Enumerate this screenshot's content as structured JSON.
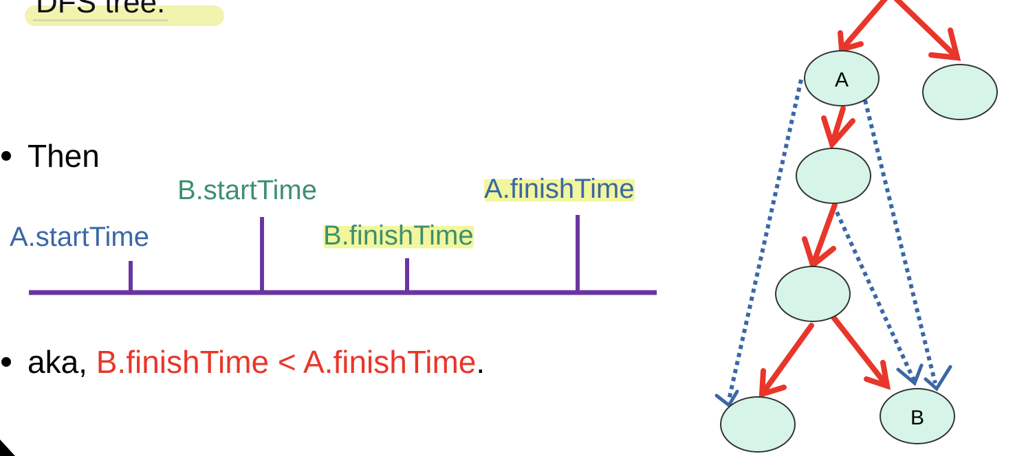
{
  "heading": {
    "text": "DFS tree."
  },
  "bullets": {
    "then": "Then",
    "aka_prefix": "aka, ",
    "aka_relation": "B.finishTime < A.finishTime",
    "aka_suffix": "."
  },
  "timeline": {
    "labels": {
      "a_start": "A.startTime",
      "b_start": "B.startTime",
      "b_finish": "B.finishTime",
      "a_finish": "A.finishTime"
    }
  },
  "tree": {
    "node_a_label": "A",
    "node_b_label": "B"
  },
  "colors": {
    "timeline": "#6a35a0",
    "tree_edge": "#e8362a",
    "back_edge": "#3a67a6",
    "node_fill": "#d6f5e8",
    "label_blue": "#3a67a6",
    "label_green": "#3e8f6e",
    "highlight": "#f1f2a6"
  }
}
